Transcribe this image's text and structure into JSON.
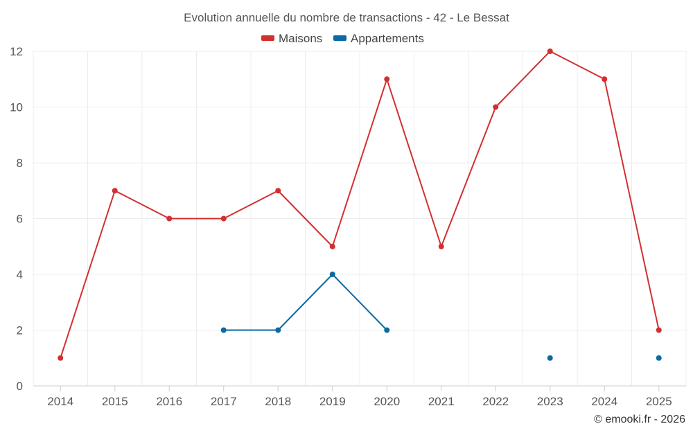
{
  "chart_data": {
    "type": "line",
    "title": "Evolution annuelle du nombre de transactions - 42 - Le Bessat",
    "categories": [
      "2014",
      "2015",
      "2016",
      "2017",
      "2018",
      "2019",
      "2020",
      "2021",
      "2022",
      "2023",
      "2024",
      "2025"
    ],
    "ylim": [
      0,
      12
    ],
    "yticks": [
      0,
      2,
      4,
      6,
      8,
      10,
      12
    ],
    "grid": true,
    "legend_position": "top-center",
    "series": [
      {
        "name": "Maisons",
        "color": "#d32f2f",
        "values": [
          1,
          7,
          6,
          6,
          7,
          5,
          11,
          5,
          10,
          12,
          11,
          2
        ]
      },
      {
        "name": "Appartements",
        "color": "#0b6aa2",
        "values": [
          null,
          null,
          null,
          2,
          2,
          4,
          2,
          null,
          null,
          1,
          null,
          1
        ]
      }
    ],
    "credit": "© emooki.fr - 2026"
  }
}
